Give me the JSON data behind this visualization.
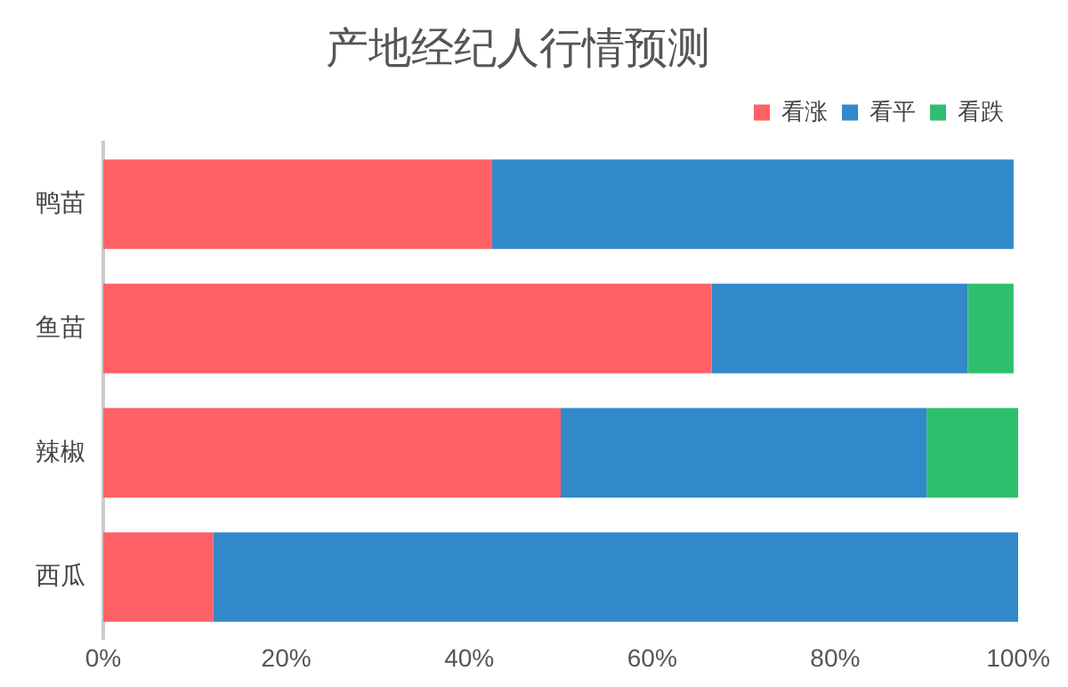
{
  "chart_data": {
    "type": "bar",
    "orientation": "horizontal",
    "stacked": true,
    "title": "产地经纪人行情预测",
    "categories": [
      "鸭苗",
      "鱼苗",
      "辣椒",
      "西瓜"
    ],
    "series": [
      {
        "name": "看涨",
        "color": "#ff6166",
        "values": [
          42.5,
          66.5,
          50,
          12
        ]
      },
      {
        "name": "看平",
        "color": "#3289c9",
        "values": [
          57,
          28,
          40,
          88
        ]
      },
      {
        "name": "看跌",
        "color": "#2fbf6c",
        "values": [
          0,
          5,
          10,
          0
        ]
      }
    ],
    "xlim": [
      0,
      100
    ],
    "xticks": [
      {
        "value": 0,
        "label": "0%"
      },
      {
        "value": 20,
        "label": "20%"
      },
      {
        "value": 40,
        "label": "40%"
      },
      {
        "value": 60,
        "label": "60%"
      },
      {
        "value": 80,
        "label": "80%"
      },
      {
        "value": 100,
        "label": "100%"
      }
    ],
    "grid": false,
    "legend": "top right"
  }
}
